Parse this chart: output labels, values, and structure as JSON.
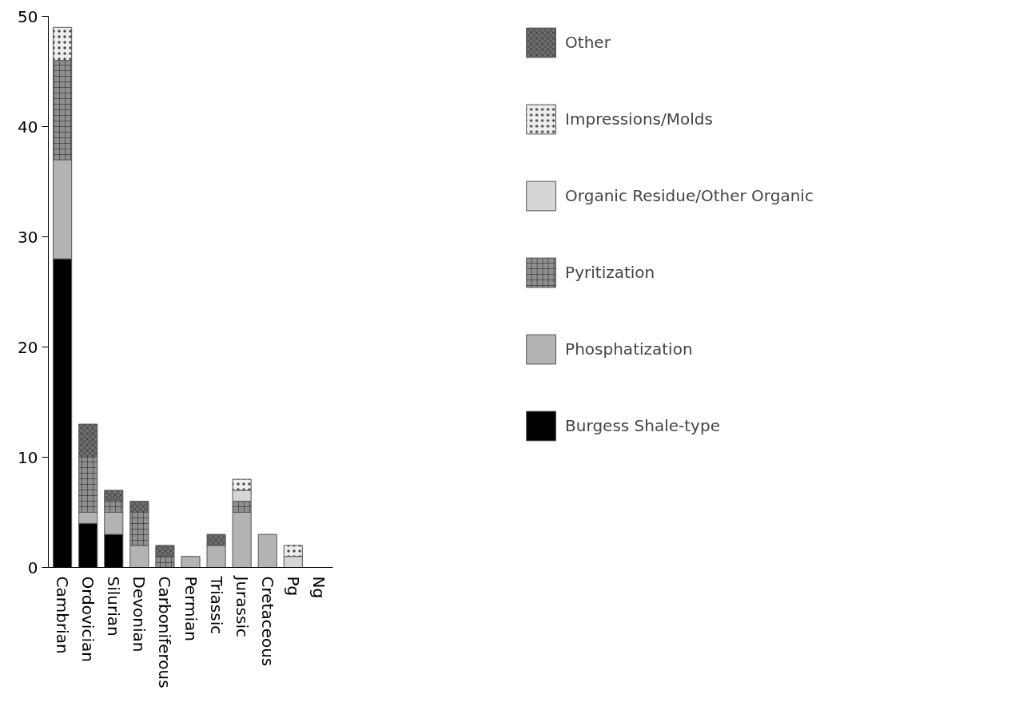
{
  "chart_data": {
    "type": "bar",
    "stacked": true,
    "categories": [
      "Cambrian",
      "Ordovician",
      "Silurian",
      "Devonian",
      "Carboniferous",
      "Permian",
      "Triassic",
      "Jurassic",
      "Cretaceous",
      "Pg",
      "Ng"
    ],
    "series": [
      {
        "name": "Burgess Shale-type",
        "color": "#000000",
        "values": [
          28,
          4,
          3,
          0,
          0,
          0,
          0,
          0,
          0,
          0,
          0
        ]
      },
      {
        "name": "Phosphatization",
        "color": "#b3b3b3",
        "values": [
          9,
          1,
          2,
          2,
          0,
          1,
          2,
          5,
          3,
          0,
          0
        ]
      },
      {
        "name": "Pyritization",
        "color": "#8f8f8f",
        "values": [
          9,
          5,
          1,
          3,
          1,
          0,
          0,
          1,
          0,
          0,
          0
        ]
      },
      {
        "name": "Organic Residue/Other Organic",
        "color": "#d6d6d6",
        "values": [
          0,
          0,
          0,
          0,
          0,
          0,
          0,
          1,
          0,
          1,
          0
        ]
      },
      {
        "name": "Impressions/Molds",
        "color": "#eeeeee",
        "values": [
          3,
          0,
          0,
          0,
          0,
          0,
          0,
          1,
          0,
          1,
          0
        ]
      },
      {
        "name": "Other",
        "color": "#6e6e6e",
        "values": [
          0,
          3,
          1,
          1,
          1,
          0,
          1,
          0,
          0,
          0,
          0
        ]
      }
    ],
    "ylim": [
      0,
      50
    ],
    "yticks": [
      0,
      10,
      20,
      30,
      40,
      50
    ],
    "grid": false,
    "legend": "right"
  }
}
